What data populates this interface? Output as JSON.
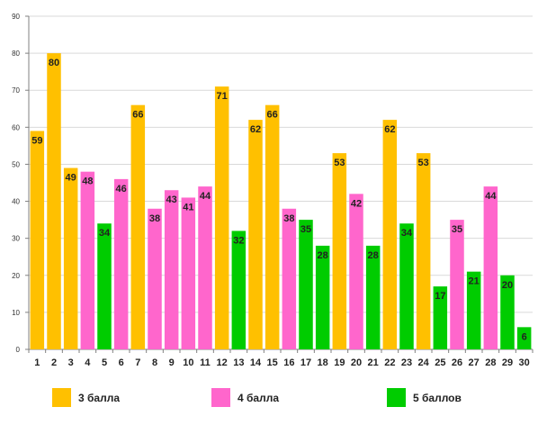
{
  "chart_data": {
    "type": "bar",
    "title": "",
    "xlabel": "",
    "ylabel": "",
    "ylim": [
      0,
      90
    ],
    "yticks": [
      0,
      10,
      20,
      30,
      40,
      50,
      60,
      70,
      80,
      90
    ],
    "grid": true,
    "legend_position": "bottom",
    "categories": [
      "1",
      "2",
      "3",
      "4",
      "5",
      "6",
      "7",
      "8",
      "9",
      "10",
      "11",
      "12",
      "13",
      "14",
      "15",
      "16",
      "17",
      "18",
      "19",
      "20",
      "21",
      "22",
      "23",
      "24",
      "25",
      "26",
      "27",
      "28",
      "29",
      "30"
    ],
    "values": [
      59,
      80,
      49,
      48,
      34,
      46,
      66,
      38,
      43,
      41,
      44,
      71,
      32,
      62,
      66,
      38,
      35,
      28,
      53,
      42,
      28,
      62,
      34,
      53,
      17,
      35,
      21,
      44,
      20,
      6
    ],
    "groups": [
      "3 балла",
      "3 балла",
      "3 балла",
      "4 балла",
      "5 баллов",
      "4 балла",
      "3 балла",
      "4 балла",
      "4 балла",
      "4 балла",
      "4 балла",
      "3 балла",
      "5 баллов",
      "3 балла",
      "3 балла",
      "4 балла",
      "5 баллов",
      "5 баллов",
      "3 балла",
      "4 балла",
      "5 баллов",
      "3 балла",
      "5 баллов",
      "3 балла",
      "5 баллов",
      "4 балла",
      "5 баллов",
      "4 балла",
      "5 баллов",
      "5 баллов"
    ],
    "legend": [
      {
        "name": "3 балла",
        "color": "#FFC000"
      },
      {
        "name": "4 балла",
        "color": "#FF66CC"
      },
      {
        "name": "5 баллов",
        "color": "#00CC00"
      }
    ]
  }
}
